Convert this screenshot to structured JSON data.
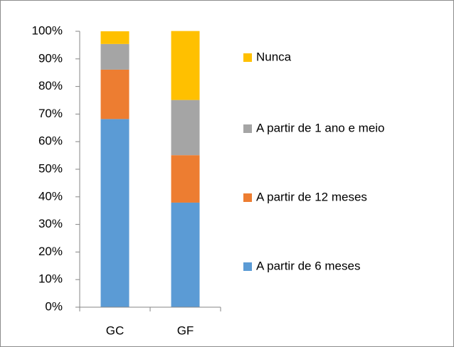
{
  "chart_data": {
    "type": "stacked_bar",
    "categories": [
      "GC",
      "GF"
    ],
    "series": [
      {
        "name": "A partir de 6 meses",
        "color": "#5b9bd5",
        "values": [
          68.2,
          37.9
        ]
      },
      {
        "name": "A partir de 12 meses",
        "color": "#ed7d31",
        "values": [
          17.9,
          17.2
        ]
      },
      {
        "name": "A partir de 1 ano e meio",
        "color": "#a5a5a5",
        "values": [
          9.3,
          20.0
        ]
      },
      {
        "name": "Nunca",
        "color": "#ffc000",
        "values": [
          4.6,
          25.0
        ]
      }
    ],
    "ylim": [
      0,
      100
    ],
    "yticks": [
      {
        "value": 0,
        "label": "0%"
      },
      {
        "value": 10,
        "label": "10%"
      },
      {
        "value": 20,
        "label": "20%"
      },
      {
        "value": 30,
        "label": "30%"
      },
      {
        "value": 40,
        "label": "40%"
      },
      {
        "value": 50,
        "label": "50%"
      },
      {
        "value": 60,
        "label": "60%"
      },
      {
        "value": 70,
        "label": "70%"
      },
      {
        "value": 80,
        "label": "80%"
      },
      {
        "value": 90,
        "label": "90%"
      },
      {
        "value": 100,
        "label": "100%"
      }
    ],
    "grid": false,
    "legend": "right"
  }
}
